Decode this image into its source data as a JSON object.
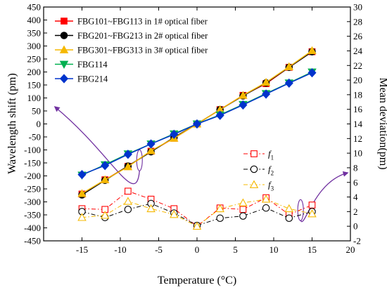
{
  "chart_data": {
    "type": "line",
    "xlabel": "Temperature (°C)",
    "ylabel_left": "Wavelength shift (pm)",
    "ylabel_right": "Mean deviation(pm)",
    "xlim": [
      -20,
      20
    ],
    "ylim_left": [
      -450,
      450
    ],
    "ylim_right": [
      -2,
      30
    ],
    "x_ticks": [
      -15,
      -10,
      -5,
      0,
      5,
      10,
      15,
      20
    ],
    "y_left_ticks": [
      -450,
      -400,
      -350,
      -300,
      -250,
      -200,
      -150,
      -100,
      -50,
      0,
      50,
      100,
      150,
      200,
      250,
      300,
      350,
      400,
      450
    ],
    "y_right_ticks": [
      -2,
      0,
      2,
      4,
      6,
      8,
      10,
      12,
      14,
      16,
      18,
      20,
      22,
      24,
      26,
      28,
      30
    ],
    "grid": false,
    "legend_placement": "top-left",
    "series": [
      {
        "name": "FBG101~FBG113 in 1# optical fiber",
        "axis": "left",
        "color": "#ff0000",
        "marker": "square",
        "line": "solid",
        "x": [
          -15,
          -12,
          -9,
          -6,
          -3,
          0,
          3,
          6,
          9,
          12,
          15
        ],
        "y": [
          -270,
          -215,
          -163,
          -105,
          -55,
          0,
          55,
          110,
          155,
          218,
          278
        ]
      },
      {
        "name": "FBG201~FBG213 in 2# optical fiber",
        "axis": "left",
        "color": "#000000",
        "marker": "circle",
        "line": "solid",
        "x": [
          -15,
          -12,
          -9,
          -6,
          -3,
          0,
          3,
          6,
          9,
          12,
          15
        ],
        "y": [
          -273,
          -217,
          -162,
          -107,
          -52,
          0,
          55,
          108,
          158,
          218,
          278
        ]
      },
      {
        "name": "FBG301~FBG313 in 3# optical fiber",
        "axis": "left",
        "color": "#f5b800",
        "marker": "triangle-up",
        "line": "solid",
        "x": [
          -15,
          -12,
          -9,
          -6,
          -3,
          0,
          3,
          6,
          9,
          12,
          15
        ],
        "y": [
          -268,
          -215,
          -165,
          -103,
          -55,
          0,
          55,
          110,
          160,
          220,
          282
        ]
      },
      {
        "name": "FBG114",
        "axis": "left",
        "color": "#00b050",
        "marker": "triangle-down",
        "line": "solid",
        "x": [
          -15,
          -12,
          -9,
          -6,
          -3,
          0,
          3,
          6,
          9,
          12,
          15
        ],
        "y": [
          -197,
          -157,
          -115,
          -77,
          -38,
          0,
          35,
          75,
          117,
          158,
          200
        ]
      },
      {
        "name": "FBG214",
        "axis": "left",
        "color": "#0033cc",
        "marker": "diamond",
        "line": "solid",
        "x": [
          -15,
          -12,
          -9,
          -6,
          -3,
          0,
          3,
          6,
          9,
          12,
          15
        ],
        "y": [
          -195,
          -160,
          -117,
          -77,
          -40,
          0,
          33,
          73,
          115,
          157,
          197
        ]
      }
    ],
    "deviation_series": [
      {
        "name": "f1",
        "label_base": "f",
        "label_sub": "1",
        "axis": "right",
        "color": "#ff0000",
        "marker": "square-open",
        "line": "dash-dot",
        "x": [
          -15,
          -12,
          -9,
          -6,
          -3,
          0,
          3,
          6,
          9,
          12,
          15
        ],
        "y": [
          2.4,
          2.3,
          4.8,
          3.7,
          2.4,
          0.0,
          2.5,
          2.3,
          3.9,
          1.6,
          2.9
        ]
      },
      {
        "name": "f2",
        "label_base": "f",
        "label_sub": "2",
        "axis": "right",
        "color": "#000000",
        "marker": "circle-open",
        "line": "dash-dot",
        "x": [
          -15,
          -12,
          -9,
          -6,
          -3,
          0,
          3,
          6,
          9,
          12,
          15
        ],
        "y": [
          2.0,
          1.2,
          2.3,
          3.1,
          1.8,
          0.1,
          1.1,
          1.4,
          2.5,
          1.1,
          2.0
        ]
      },
      {
        "name": "f3",
        "label_base": "f",
        "label_sub": "3",
        "axis": "right",
        "color": "#f5b800",
        "marker": "triangle-open",
        "line": "dash-dot",
        "x": [
          -15,
          -12,
          -9,
          -6,
          -3,
          0,
          3,
          6,
          9,
          12,
          15
        ],
        "y": [
          1.2,
          1.5,
          3.4,
          2.4,
          1.6,
          0.0,
          2.4,
          3.2,
          3.7,
          2.4,
          1.7
        ]
      }
    ],
    "annotations": [
      {
        "type": "ellipse-arrow",
        "target": "left-axis-series",
        "at": [
          -7.5,
          -140
        ],
        "arrow_direction": "left"
      },
      {
        "type": "ellipse-arrow",
        "target": "right-axis-series",
        "at": [
          13.5,
          2.2
        ],
        "arrow_direction": "right"
      }
    ]
  }
}
